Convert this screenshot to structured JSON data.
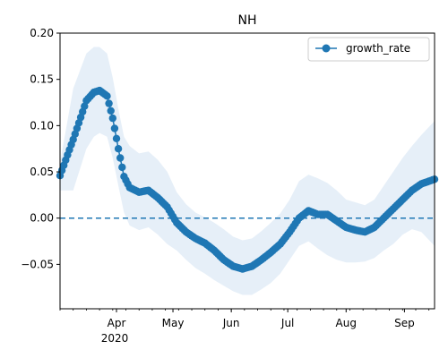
{
  "chart_data": {
    "type": "line",
    "title": "NH",
    "xlabel": "",
    "ylabel": "",
    "x_range": [
      "2020-03-02",
      "2020-09-17"
    ],
    "ylim": [
      -0.098,
      0.2
    ],
    "y_ticks": [
      -0.05,
      0.0,
      0.05,
      0.1,
      0.15,
      0.2
    ],
    "y_tick_labels": [
      "−0.05",
      "0.00",
      "0.05",
      "0.10",
      "0.15",
      "0.20"
    ],
    "x_ticks": [
      {
        "date": "2020-04-01",
        "label": "Apr"
      },
      {
        "date": "2020-05-01",
        "label": "May"
      },
      {
        "date": "2020-06-01",
        "label": "Jun"
      },
      {
        "date": "2020-07-01",
        "label": "Jul"
      },
      {
        "date": "2020-08-01",
        "label": "Aug"
      },
      {
        "date": "2020-09-01",
        "label": "Sep"
      }
    ],
    "x_year_label": "2020",
    "grid": false,
    "legend_position": "top-right",
    "reference_line": {
      "y": 0,
      "style": "dashed",
      "color": "#1f77b4"
    },
    "colors": {
      "series": "#1f77b4",
      "band": "#dce8f5"
    },
    "series": [
      {
        "name": "growth_rate",
        "marker": "circle",
        "x": [
          "2020-03-02",
          "2020-03-09",
          "2020-03-16",
          "2020-03-20",
          "2020-03-23",
          "2020-03-27",
          "2020-03-30",
          "2020-04-02",
          "2020-04-05",
          "2020-04-08",
          "2020-04-13",
          "2020-04-18",
          "2020-04-23",
          "2020-04-28",
          "2020-05-03",
          "2020-05-08",
          "2020-05-13",
          "2020-05-18",
          "2020-05-23",
          "2020-05-28",
          "2020-06-02",
          "2020-06-07",
          "2020-06-12",
          "2020-06-17",
          "2020-06-22",
          "2020-06-27",
          "2020-07-02",
          "2020-07-07",
          "2020-07-12",
          "2020-07-17",
          "2020-07-22",
          "2020-07-27",
          "2020-08-01",
          "2020-08-06",
          "2020-08-11",
          "2020-08-16",
          "2020-08-21",
          "2020-08-26",
          "2020-08-31",
          "2020-09-05",
          "2020-09-10",
          "2020-09-17"
        ],
        "values": [
          0.046,
          0.085,
          0.127,
          0.136,
          0.138,
          0.132,
          0.108,
          0.075,
          0.045,
          0.033,
          0.028,
          0.03,
          0.022,
          0.012,
          -0.005,
          -0.015,
          -0.022,
          -0.027,
          -0.035,
          -0.045,
          -0.052,
          -0.055,
          -0.052,
          -0.045,
          -0.037,
          -0.028,
          -0.015,
          0.0,
          0.008,
          0.004,
          0.004,
          -0.003,
          -0.01,
          -0.013,
          -0.015,
          -0.01,
          0.0,
          0.01,
          0.02,
          0.03,
          0.037,
          0.042
        ],
        "band_upper": [
          0.06,
          0.14,
          0.178,
          0.185,
          0.185,
          0.178,
          0.152,
          0.118,
          0.088,
          0.078,
          0.07,
          0.072,
          0.063,
          0.05,
          0.028,
          0.015,
          0.006,
          0.001,
          -0.005,
          -0.012,
          -0.02,
          -0.024,
          -0.022,
          -0.014,
          -0.005,
          0.005,
          0.02,
          0.04,
          0.047,
          0.043,
          0.038,
          0.03,
          0.02,
          0.017,
          0.014,
          0.02,
          0.035,
          0.05,
          0.065,
          0.078,
          0.09,
          0.105
        ],
        "band_lower": [
          0.03,
          0.03,
          0.075,
          0.088,
          0.092,
          0.088,
          0.065,
          0.035,
          0.006,
          -0.008,
          -0.013,
          -0.01,
          -0.018,
          -0.028,
          -0.035,
          -0.045,
          -0.054,
          -0.06,
          -0.067,
          -0.073,
          -0.079,
          -0.083,
          -0.083,
          -0.077,
          -0.07,
          -0.06,
          -0.045,
          -0.03,
          -0.025,
          -0.033,
          -0.04,
          -0.045,
          -0.048,
          -0.048,
          -0.047,
          -0.043,
          -0.035,
          -0.028,
          -0.018,
          -0.012,
          -0.015,
          -0.03
        ]
      }
    ]
  }
}
